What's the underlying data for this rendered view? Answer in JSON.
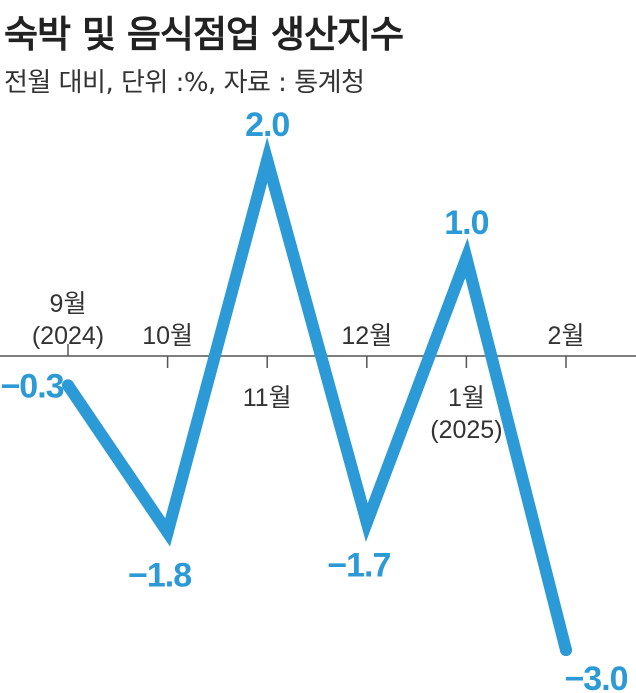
{
  "header": {
    "title": "숙박 및 음식점업 생산지수",
    "subtitle": "전월 대비, 단위 :%, 자료 : 통계청"
  },
  "colors": {
    "line": "#2b9ad6",
    "axis": "#555555",
    "text": "#222222"
  },
  "chart_data": {
    "type": "line",
    "categories": [
      "9월\n(2024)",
      "10월",
      "11월",
      "12월",
      "1월\n(2025)",
      "2월"
    ],
    "values": [
      -0.3,
      -1.8,
      2.0,
      -1.7,
      1.0,
      -3.0
    ],
    "value_labels": [
      "−0.3",
      "−1.8",
      "2.0",
      "−1.7",
      "1.0",
      "−3.0"
    ],
    "title": "숙박 및 음식점업 생산지수",
    "subtitle": "전월 대비, 단위 :%, 자료 : 통계청",
    "xlabel": "",
    "ylabel": "",
    "ylim": [
      -3.0,
      2.0
    ],
    "grid": false,
    "legend": "none"
  }
}
